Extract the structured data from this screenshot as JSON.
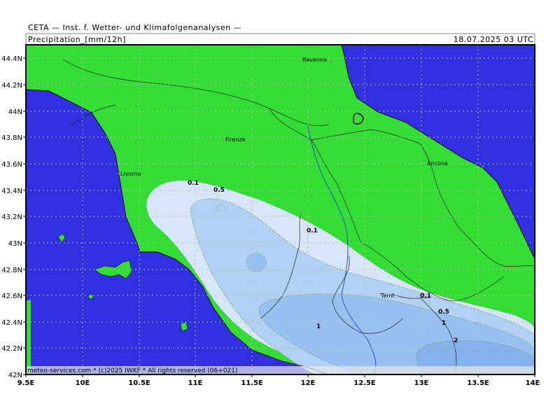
{
  "header": {
    "title": "CETA — Inst. f. Wetter- und Klimafolgenanalysen —",
    "parameter": "Precipitation_[mm/12h]",
    "valid_time": "18.07.2025  03  UTC"
  },
  "credit": "meteo-services.com * (c)2025 IWKF * All rights reserved (06+021)",
  "axes": {
    "lat_labels": [
      "44.4N",
      "44.2N",
      "44N",
      "43.8N",
      "43.6N",
      "43.4N",
      "43.2N",
      "43N",
      "42.8N",
      "42.6N",
      "42.4N",
      "42.2N",
      "42N"
    ],
    "lon_labels": [
      "9.5E",
      "10E",
      "10.5E",
      "11E",
      "11.5E",
      "12E",
      "12.5E",
      "13E",
      "13.5E",
      "14E"
    ]
  },
  "cities": {
    "ravenna": "Ravenna",
    "firenze": "Firenze",
    "livorno": "Livorno",
    "ancona": "Ancona",
    "terni": "Terni"
  },
  "contour_labels": {
    "c1": "0.1",
    "c2": "0.5",
    "c3": "0.1",
    "c4": "0.1",
    "c5": "0.5",
    "c6": "1",
    "c7": "1",
    "c8": "2"
  },
  "colors": {
    "sea": "#3030e0",
    "land": "#33dd33",
    "precip_0_1": "#d6e6f8",
    "precip_0_5": "#b2d0f4",
    "precip_1": "#98c0f0",
    "precip_2": "#84b2ec"
  }
}
